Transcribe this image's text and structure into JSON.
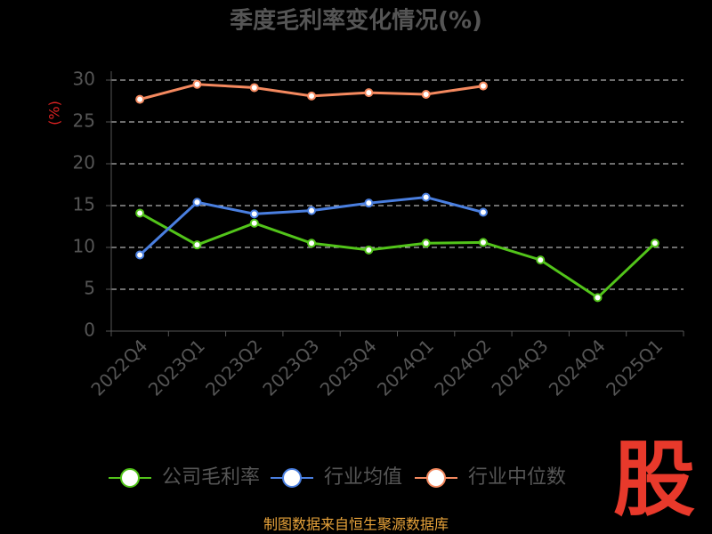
{
  "chart_data": {
    "type": "line",
    "title": "季度毛利率变化情况(%)",
    "y_label": "(%)",
    "categories": [
      "2022Q4",
      "2023Q1",
      "2023Q2",
      "2023Q3",
      "2023Q4",
      "2024Q1",
      "2024Q2",
      "2024Q3",
      "2024Q4",
      "2025Q1"
    ],
    "series": [
      {
        "name": "公司毛利率",
        "color": "#52c41a",
        "values": [
          14.1,
          10.3,
          12.9,
          10.5,
          9.7,
          10.5,
          10.6,
          8.5,
          4.0,
          10.5
        ]
      },
      {
        "name": "行业均值",
        "color": "#4a7fe0",
        "values": [
          9.1,
          15.4,
          14.0,
          14.4,
          15.3,
          16.0,
          14.2,
          null,
          null,
          null
        ]
      },
      {
        "name": "行业中位数",
        "color": "#f4895f",
        "values": [
          27.7,
          29.5,
          29.1,
          28.1,
          28.5,
          28.3,
          29.3,
          null,
          null,
          null
        ]
      }
    ],
    "ylim": [
      0,
      30
    ],
    "yticks": [
      0,
      5,
      10,
      15,
      20,
      25,
      30
    ],
    "grid": true,
    "source": "制图数据来自恒生聚源数据库",
    "watermark": "股"
  }
}
